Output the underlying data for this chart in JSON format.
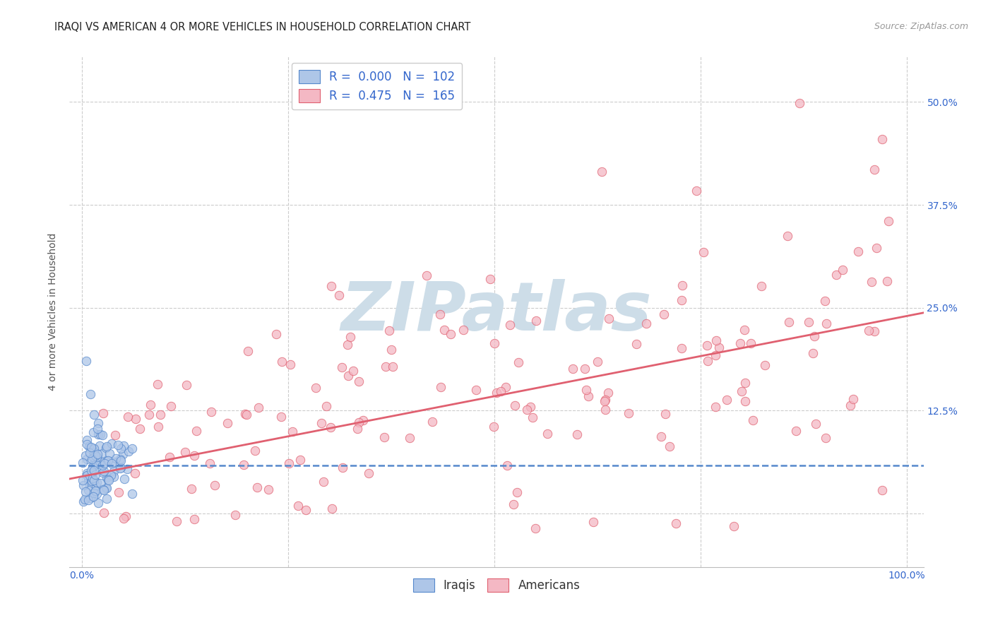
{
  "title": "IRAQI VS AMERICAN 4 OR MORE VEHICLES IN HOUSEHOLD CORRELATION CHART",
  "source": "Source: ZipAtlas.com",
  "ylabel": "4 or more Vehicles in Household",
  "iraqi_R": "0.000",
  "iraqi_N": "102",
  "american_R": "0.475",
  "american_N": "165",
  "iraqi_color": "#aec6e8",
  "american_color": "#f4b8c4",
  "iraqi_edge_color": "#5588cc",
  "american_edge_color": "#e06070",
  "iraqi_line_color": "#5588cc",
  "american_line_color": "#e06070",
  "tick_label_color": "#3366cc",
  "title_color": "#222222",
  "axis_label_color": "#555555",
  "grid_color": "#cccccc",
  "background_color": "#ffffff",
  "watermark": "ZIPatlas",
  "watermark_color": "#cddde8",
  "legend_labels": [
    "Iraqis",
    "Americans"
  ],
  "ytick_vals": [
    0.0,
    0.125,
    0.25,
    0.375,
    0.5
  ],
  "ytick_labels_right": [
    "",
    "12.5%",
    "25.0%",
    "37.5%",
    "50.0%"
  ],
  "xtick_vals": [
    0.0,
    0.25,
    0.5,
    0.75,
    1.0
  ],
  "xlim": [
    -0.015,
    1.02
  ],
  "ylim": [
    -0.065,
    0.555
  ],
  "iraqi_line_intercept": 0.058,
  "iraqi_line_slope": 0.0,
  "american_line_intercept": 0.045,
  "american_line_slope": 0.195
}
